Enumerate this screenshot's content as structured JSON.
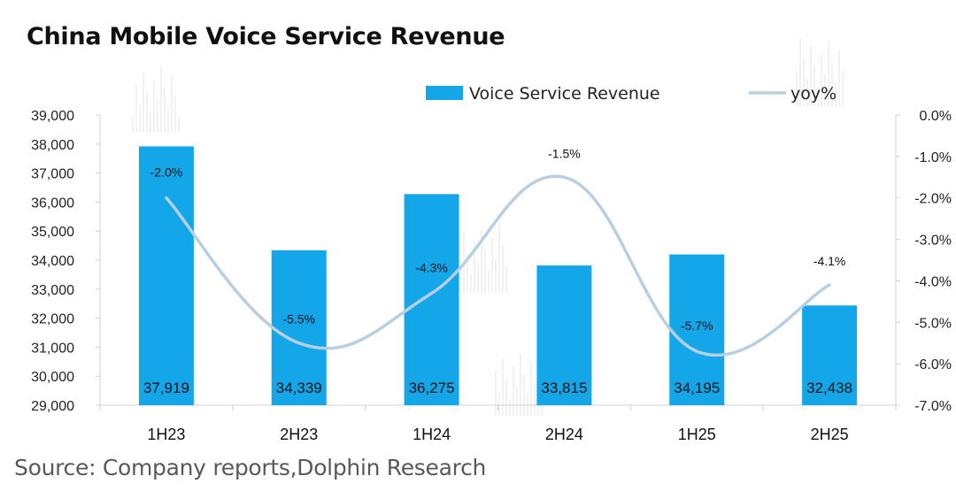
{
  "title": "China Mobile Voice Service Revenue",
  "source": "Source: Company reports,Dolphin Research",
  "colors": {
    "bar": "#13a6e8",
    "line": "#b8cfe2",
    "axis": "#d0d0d0"
  },
  "chart_data": {
    "type": "bar",
    "title": "China Mobile Voice Service Revenue",
    "categories": [
      "1H23",
      "2H23",
      "1H24",
      "2H24",
      "1H25",
      "2H25"
    ],
    "series": [
      {
        "name": "Voice Service Revenue",
        "type": "bar",
        "axis": "left",
        "values": [
          37919,
          34339,
          36275,
          33815,
          34195,
          32438
        ],
        "labels": [
          "37,919",
          "34,339",
          "36,275",
          "33,815",
          "34,195",
          "32,438"
        ]
      },
      {
        "name": "yoy%",
        "type": "line",
        "axis": "right",
        "values": [
          -2.0,
          -5.5,
          -4.3,
          -1.5,
          -5.7,
          -4.1
        ],
        "labels": [
          "-2.0%",
          "-5.5%",
          "-4.3%",
          "-1.5%",
          "-5.7%",
          "-4.1%"
        ]
      }
    ],
    "y_left": {
      "min": 29000,
      "max": 39000,
      "step": 1000,
      "ticks": [
        "29,000",
        "30,000",
        "31,000",
        "32,000",
        "33,000",
        "34,000",
        "35,000",
        "36,000",
        "37,000",
        "38,000",
        "39,000"
      ]
    },
    "y_right": {
      "min": -7.0,
      "max": 0.0,
      "step": 1.0,
      "ticks": [
        "-7.0%",
        "-6.0%",
        "-5.0%",
        "-4.0%",
        "-3.0%",
        "-2.0%",
        "-1.0%",
        "0.0%"
      ]
    },
    "legend": "top-right",
    "grid": false
  }
}
